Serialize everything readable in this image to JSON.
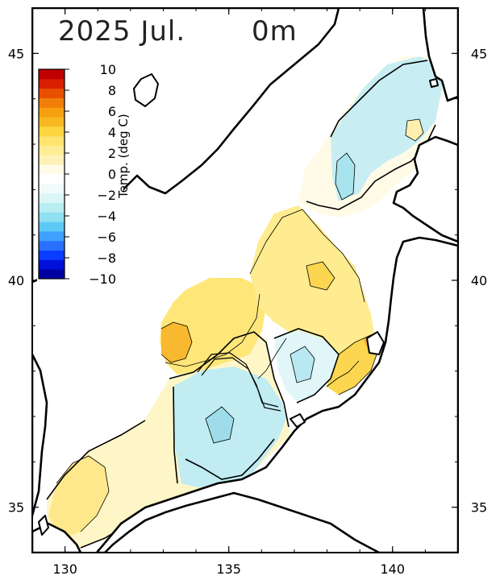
{
  "title": {
    "year_month": "2025 Jul.",
    "depth": "0m"
  },
  "map": {
    "lon_range": [
      129.0,
      142.0
    ],
    "lat_range": [
      34.0,
      46.0
    ],
    "lon_ticks": [
      {
        "value": 130,
        "label": "130"
      },
      {
        "value": 135,
        "label": "135"
      },
      {
        "value": 140,
        "label": "140"
      }
    ],
    "lat_ticks": [
      {
        "value": 45,
        "label": "45"
      },
      {
        "value": 40,
        "label": "40"
      },
      {
        "value": 35,
        "label": "35"
      }
    ]
  },
  "colorbar": {
    "title": "Temp. (deg C)",
    "labels": [
      "10",
      "8",
      "6",
      "4",
      "2",
      "0",
      "−2",
      "−4",
      "−6",
      "−8",
      "−10"
    ],
    "range": [
      -10,
      10
    ],
    "colors": [
      "#0000a0",
      "#0010d8",
      "#0a3cff",
      "#2a70ff",
      "#3fa0ff",
      "#5ec8f5",
      "#8fe0f0",
      "#b8eef2",
      "#dcf6f7",
      "#f2fbfb",
      "#ffffff",
      "#fffbe6",
      "#fff2b8",
      "#ffec96",
      "#ffe470",
      "#fcd640",
      "#f8b820",
      "#f6a010",
      "#f07e08",
      "#e85000",
      "#d82000",
      "#c00000"
    ]
  },
  "anomaly_regions": [
    {
      "name": "northeast-pacific-strip",
      "value": -1.5
    },
    {
      "name": "north-japan-sea",
      "value": -1.0
    },
    {
      "name": "central-japan-sea-warm",
      "value": 2.5
    },
    {
      "name": "west-japan-sea-warm",
      "value": 3.0
    },
    {
      "name": "yamato-basin-cold",
      "value": -1.5
    },
    {
      "name": "tsushima-warm",
      "value": 1.5
    },
    {
      "name": "peter-bay-warm",
      "value": 2.0
    }
  ]
}
